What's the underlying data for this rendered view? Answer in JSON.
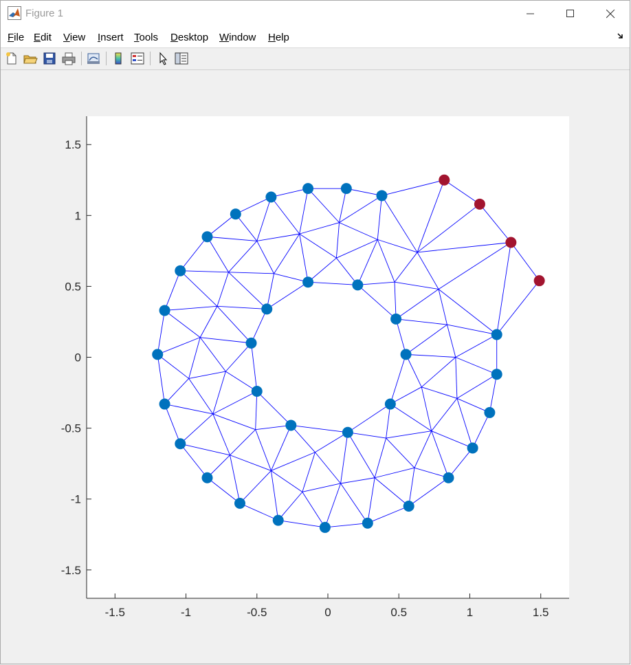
{
  "window": {
    "title": "Figure 1",
    "app_icon": "matlab-icon",
    "controls": [
      "minimize-icon",
      "maximize-icon",
      "close-icon"
    ]
  },
  "menu": {
    "items": [
      {
        "label": "File",
        "accel": "F",
        "rest": "ile"
      },
      {
        "label": "Edit",
        "accel": "E",
        "rest": "dit"
      },
      {
        "label": "View",
        "accel": "V",
        "rest": "iew"
      },
      {
        "label": "Insert",
        "accel": "I",
        "rest": "nsert"
      },
      {
        "label": "Tools",
        "accel": "T",
        "rest": "ools"
      },
      {
        "label": "Desktop",
        "accel": "D",
        "rest": "esktop"
      },
      {
        "label": "Window",
        "accel": "W",
        "rest": "indow"
      },
      {
        "label": "Help",
        "accel": "H",
        "rest": "elp"
      }
    ]
  },
  "toolbar": {
    "buttons": [
      "new-figure-icon",
      "open-file-icon",
      "save-icon",
      "print-icon",
      "link-plot-icon",
      "colorbar-icon",
      "legend-icon",
      "edit-plot-arrow-icon",
      "property-inspector-icon"
    ]
  },
  "colors": {
    "boundary_node": "#0072BD",
    "selected_node": "#A2142F",
    "mesh_edge": "#0000FF",
    "axes_background": "#FFFFFF",
    "figure_background": "#F0F0F0"
  },
  "chart_data": {
    "type": "scatter",
    "description_free": true,
    "xlim": [
      -1.7,
      1.7
    ],
    "ylim": [
      -1.7,
      1.7
    ],
    "xticks": [
      -1.5,
      -1,
      -0.5,
      0,
      0.5,
      1,
      1.5
    ],
    "yticks": [
      -1.5,
      -1,
      -0.5,
      0,
      0.5,
      1,
      1.5
    ],
    "xtick_labels": [
      "-1.5",
      "-1",
      "-0.5",
      "0",
      "0.5",
      "1",
      "1.5"
    ],
    "ytick_labels": [
      "-1.5",
      "-1",
      "-0.5",
      "0",
      "0.5",
      "1",
      "1.5"
    ],
    "grid": false,
    "outer_boundary_nodes": [
      [
        0.82,
        1.25
      ],
      [
        1.07,
        1.08
      ],
      [
        1.29,
        0.81
      ],
      [
        1.49,
        0.54
      ],
      [
        1.19,
        0.16
      ],
      [
        1.19,
        -0.12
      ],
      [
        1.14,
        -0.39
      ],
      [
        1.02,
        -0.64
      ],
      [
        0.85,
        -0.85
      ],
      [
        0.57,
        -1.05
      ],
      [
        0.28,
        -1.17
      ],
      [
        -0.02,
        -1.2
      ],
      [
        -0.35,
        -1.15
      ],
      [
        -0.62,
        -1.03
      ],
      [
        -0.85,
        -0.85
      ],
      [
        -1.04,
        -0.61
      ],
      [
        -1.15,
        -0.33
      ],
      [
        -1.2,
        0.02
      ],
      [
        -1.15,
        0.33
      ],
      [
        -1.04,
        0.61
      ],
      [
        -0.85,
        0.85
      ],
      [
        -0.65,
        1.01
      ],
      [
        -0.4,
        1.13
      ],
      [
        -0.14,
        1.19
      ],
      [
        0.13,
        1.19
      ],
      [
        0.38,
        1.14
      ]
    ],
    "inner_boundary_nodes": [
      [
        0.48,
        0.27
      ],
      [
        0.55,
        0.02
      ],
      [
        0.44,
        -0.33
      ],
      [
        0.14,
        -0.53
      ],
      [
        -0.26,
        -0.48
      ],
      [
        -0.5,
        -0.24
      ],
      [
        -0.54,
        0.1
      ],
      [
        -0.43,
        0.34
      ],
      [
        -0.14,
        0.53
      ],
      [
        0.21,
        0.51
      ]
    ],
    "interior_nodes": [
      [
        0.08,
        0.95
      ],
      [
        0.35,
        0.83
      ],
      [
        -0.2,
        0.87
      ],
      [
        -0.5,
        0.82
      ],
      [
        0.63,
        0.74
      ],
      [
        0.06,
        0.7
      ],
      [
        -0.7,
        0.6
      ],
      [
        -0.38,
        0.59
      ],
      [
        0.47,
        0.53
      ],
      [
        0.78,
        0.48
      ],
      [
        -0.78,
        0.36
      ],
      [
        0.84,
        0.23
      ],
      [
        -0.9,
        0.14
      ],
      [
        0.9,
        0.0
      ],
      [
        -0.72,
        -0.1
      ],
      [
        -0.98,
        -0.15
      ],
      [
        0.66,
        -0.21
      ],
      [
        0.91,
        -0.29
      ],
      [
        -0.81,
        -0.4
      ],
      [
        -0.51,
        -0.51
      ],
      [
        0.73,
        -0.52
      ],
      [
        -0.69,
        -0.69
      ],
      [
        0.41,
        -0.57
      ],
      [
        -0.09,
        -0.67
      ],
      [
        -0.4,
        -0.8
      ],
      [
        0.61,
        -0.78
      ],
      [
        0.33,
        -0.85
      ],
      [
        0.09,
        -0.89
      ],
      [
        -0.18,
        -0.95
      ]
    ],
    "selected_nodes": [
      [
        0.82,
        1.25
      ],
      [
        1.07,
        1.08
      ],
      [
        1.29,
        0.81
      ],
      [
        1.49,
        0.54
      ]
    ]
  }
}
